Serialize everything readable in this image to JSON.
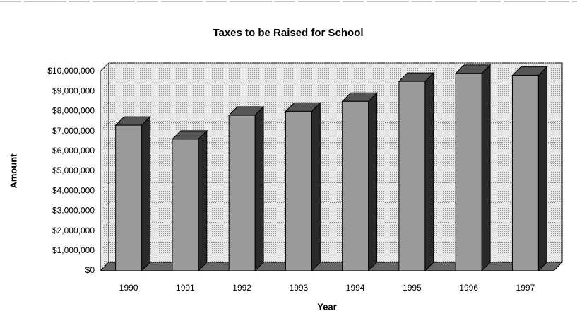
{
  "chart_data": {
    "type": "bar3d",
    "title": "Taxes to be Raised for School",
    "x_label": "Year",
    "y_label": "Amount",
    "categories": [
      "1990",
      "1991",
      "1992",
      "1993",
      "1994",
      "1995",
      "1996",
      "1997"
    ],
    "values": [
      7300000,
      6600000,
      7800000,
      8000000,
      8500000,
      9500000,
      9900000,
      9800000
    ],
    "color": "#9a9a9a",
    "ylim": [
      0,
      10000000
    ],
    "yticks": [
      {
        "value": 0,
        "label": "$0"
      },
      {
        "value": 1000000,
        "label": "$1,000,000"
      },
      {
        "value": 2000000,
        "label": "$2,000,000"
      },
      {
        "value": 3000000,
        "label": "$3,000,000"
      },
      {
        "value": 4000000,
        "label": "$4,000,000"
      },
      {
        "value": 5000000,
        "label": "$5,000,000"
      },
      {
        "value": 6000000,
        "label": "$6,000,000"
      },
      {
        "value": 7000000,
        "label": "$7,000,000"
      },
      {
        "value": 8000000,
        "label": "$8,000,000"
      },
      {
        "value": 9000000,
        "label": "$9,000,000"
      },
      {
        "value": 10000000,
        "label": "$10,000,000"
      }
    ],
    "grid": true
  }
}
